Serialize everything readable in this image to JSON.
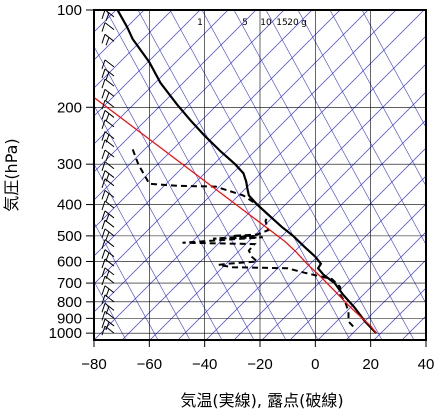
{
  "chart_data": {
    "type": "line",
    "title": "",
    "xlabel": "気温(実線), 露点(破線)",
    "ylabel": "気圧(hPa)",
    "xlim": [
      -80,
      40
    ],
    "ylim": [
      1050,
      100
    ],
    "y_scale": "log",
    "grid": true,
    "x_ticks": [
      "−80",
      "−60",
      "−40",
      "−20",
      "0",
      "20",
      "40"
    ],
    "y_ticks": [
      {
        "p": 100,
        "label": "100"
      },
      {
        "p": 200,
        "label": "200"
      },
      {
        "p": 300,
        "label": "300"
      },
      {
        "p": 400,
        "label": "400"
      },
      {
        "p": 500,
        "label": "500"
      },
      {
        "p": 600,
        "label": "600"
      },
      {
        "p": 700,
        "label": "700"
      },
      {
        "p": 800,
        "label": "800"
      },
      {
        "p": 900,
        "label": "900"
      },
      {
        "p": 1000,
        "label": "1000"
      }
    ],
    "mixing_ratio_labels": [
      "1",
      "5",
      "10",
      "15",
      "20",
      "g"
    ],
    "colors": {
      "frame": "#000000",
      "grid": "#000000",
      "isotherm": "#3a3af0",
      "parcel": "#ff0000",
      "temperature": "#000000",
      "dewpoint": "#000000",
      "wind_barb": "#000000"
    },
    "series": [
      {
        "style": "solid",
        "points": [
          [
            -71.5,
            100
          ],
          [
            -68,
            113
          ],
          [
            -66,
            123
          ],
          [
            -60,
            145
          ],
          [
            -56,
            168
          ],
          [
            -50,
            196
          ],
          [
            -45,
            220
          ],
          [
            -40,
            245
          ],
          [
            -34,
            275
          ],
          [
            -29,
            300
          ],
          [
            -26,
            320
          ],
          [
            -25,
            340
          ],
          [
            -24.5,
            360
          ],
          [
            -24,
            375
          ],
          [
            -21,
            400
          ],
          [
            -17,
            430
          ],
          [
            -12,
            470
          ],
          [
            -8,
            500
          ],
          [
            -4,
            540
          ],
          [
            0,
            580
          ],
          [
            2,
            610
          ],
          [
            1,
            630
          ],
          [
            3,
            660
          ],
          [
            7,
            700
          ],
          [
            10,
            760
          ],
          [
            14,
            830
          ],
          [
            18,
            920
          ],
          [
            22,
            1000
          ]
        ]
      },
      {
        "style": "dashed",
        "points": [
          [
            -66,
            270
          ],
          [
            -64,
            300
          ],
          [
            -60,
            345
          ],
          [
            -50,
            350
          ],
          [
            -36,
            352
          ],
          [
            -26,
            375
          ],
          [
            -21,
            400
          ],
          [
            -17,
            430
          ],
          [
            -18,
            450
          ],
          [
            -17,
            480
          ],
          [
            -21,
            495
          ],
          [
            -30,
            500
          ],
          [
            -22,
            500
          ],
          [
            -37,
            510
          ],
          [
            -19,
            505
          ],
          [
            -48,
            525
          ],
          [
            -22,
            530
          ],
          [
            -24,
            555
          ],
          [
            -23,
            580
          ],
          [
            -21,
            600
          ],
          [
            -32,
            610
          ],
          [
            -35,
            615
          ],
          [
            -30,
            625
          ],
          [
            -10,
            630
          ],
          [
            -4,
            650
          ],
          [
            6,
            680
          ],
          [
            9,
            720
          ],
          [
            9,
            760
          ],
          [
            11,
            810
          ],
          [
            12,
            860
          ],
          [
            12,
            920
          ],
          [
            14,
            960
          ]
        ]
      },
      {
        "style": "parcel",
        "points": [
          [
            22,
            1000
          ],
          [
            20,
            950
          ],
          [
            17,
            900
          ],
          [
            12,
            820
          ],
          [
            7,
            740
          ],
          [
            2,
            670
          ],
          [
            -3,
            610
          ],
          [
            -7,
            560
          ],
          [
            -11,
            520
          ],
          [
            -15,
            490
          ]
        ]
      }
    ],
    "wind_barbs": [
      {
        "p": 105
      },
      {
        "p": 115
      },
      {
        "p": 125
      },
      {
        "p": 150
      },
      {
        "p": 160
      },
      {
        "p": 172
      },
      {
        "p": 185
      },
      {
        "p": 200
      },
      {
        "p": 215
      },
      {
        "p": 230
      },
      {
        "p": 250
      },
      {
        "p": 265
      },
      {
        "p": 285
      },
      {
        "p": 310
      },
      {
        "p": 330
      },
      {
        "p": 350
      },
      {
        "p": 380
      },
      {
        "p": 410
      },
      {
        "p": 440
      },
      {
        "p": 470
      },
      {
        "p": 500
      },
      {
        "p": 540
      },
      {
        "p": 580
      },
      {
        "p": 620
      },
      {
        "p": 660
      },
      {
        "p": 700
      },
      {
        "p": 750
      },
      {
        "p": 800
      },
      {
        "p": 850
      },
      {
        "p": 900
      },
      {
        "p": 950
      },
      {
        "p": 1000
      }
    ]
  }
}
